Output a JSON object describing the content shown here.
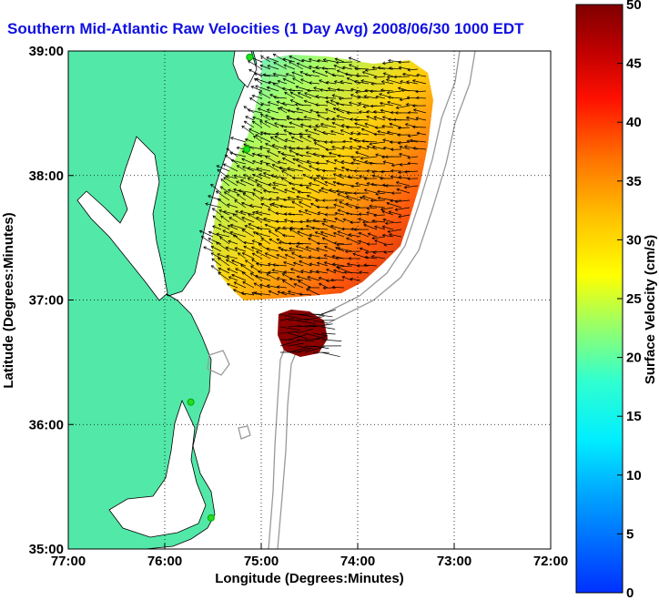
{
  "title": "Southern Mid-Atlantic Raw Velocities (1 Day Avg) 2008/06/30 1000 EDT",
  "x_axis": {
    "label": "Longitude (Degrees:Minutes)",
    "ticks": [
      "77:00",
      "76:00",
      "75:00",
      "74:00",
      "73:00",
      "72:00"
    ]
  },
  "y_axis": {
    "label": "Latitude (Degrees:Minutes)",
    "ticks": [
      "35:00",
      "36:00",
      "37:00",
      "38:00",
      "39:00"
    ]
  },
  "colorbar": {
    "label": "Surface Velocity (cm/s)",
    "ticks": [
      "0",
      "5",
      "10",
      "15",
      "20",
      "25",
      "30",
      "35",
      "40",
      "45",
      "50"
    ],
    "min": 0,
    "max": 50
  },
  "colors": {
    "land": "#52e8a8",
    "water": "#ffffff",
    "title": "#1010e0",
    "station": "#22dd22",
    "bathymetry": "#999999"
  },
  "grid": "dotted",
  "chart_data": {
    "type": "map",
    "xlim": [
      -77,
      -72
    ],
    "ylim": [
      35,
      39
    ],
    "stations": [
      {
        "lon": -75.12,
        "lat": 38.95
      },
      {
        "lon": -75.15,
        "lat": 38.21
      },
      {
        "lon": -75.73,
        "lat": 36.18
      },
      {
        "lon": -75.52,
        "lat": 35.25
      }
    ]
  }
}
